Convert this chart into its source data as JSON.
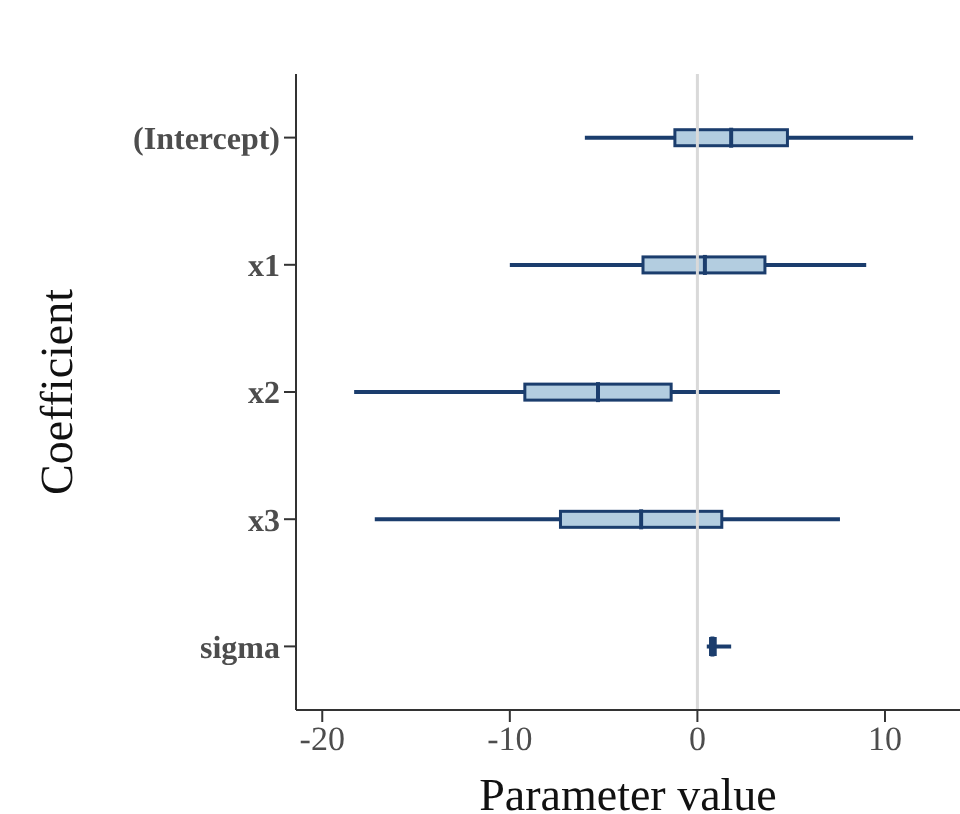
{
  "chart_data": {
    "type": "box",
    "orientation": "horizontal",
    "categories": [
      "(Intercept)",
      "x1",
      "x2",
      "x3",
      "sigma"
    ],
    "series": [
      {
        "color": "#1b3d6d",
        "boxes": [
          {
            "low": -6.0,
            "q1": -1.2,
            "median": 1.8,
            "q3": 4.8,
            "high": 11.5
          },
          {
            "low": -10.0,
            "q1": -2.9,
            "median": 0.4,
            "q3": 3.6,
            "high": 9.0
          },
          {
            "low": -18.3,
            "q1": -9.2,
            "median": -5.3,
            "q3": -1.4,
            "high": 4.4
          },
          {
            "low": -17.2,
            "q1": -7.3,
            "median": -3.0,
            "q3": 1.3,
            "high": 7.6
          },
          {
            "low": 0.5,
            "q1": 0.7,
            "median": 0.8,
            "q3": 0.95,
            "high": 1.8
          }
        ]
      }
    ],
    "xlabel": "Parameter value",
    "ylabel": "Coefficient",
    "xlim": [
      -21.4,
      14
    ],
    "xticks": [
      -20,
      -10,
      0,
      10
    ],
    "ref_lines": [
      {
        "axis": "x",
        "value": 0,
        "color": "#d9d9d9"
      }
    ]
  }
}
